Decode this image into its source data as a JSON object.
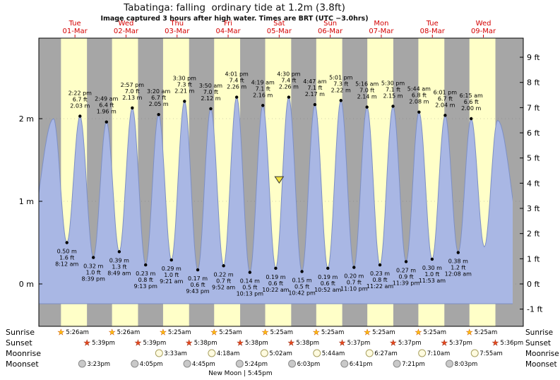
{
  "title": "Tabatinga: falling  ordinary tide at 1.2m (3.8ft)",
  "subtitle": "Image captured 3 hours after high water. Times are BRT (UTC −3.0hrs)",
  "chart_data": {
    "type": "area",
    "title": "Tabatinga: falling ordinary tide at 1.2m (3.8ft)",
    "subtitle": "Image captured 3 hours after high water. Times are BRT (UTC −3.0hrs)",
    "x_axis_days": [
      {
        "dow": "Tue",
        "date": "01-Mar"
      },
      {
        "dow": "Wed",
        "date": "02-Mar"
      },
      {
        "dow": "Thu",
        "date": "03-Mar"
      },
      {
        "dow": "Fri",
        "date": "04-Mar"
      },
      {
        "dow": "Sat",
        "date": "05-Mar"
      },
      {
        "dow": "Sun",
        "date": "06-Mar"
      },
      {
        "dow": "Mon",
        "date": "07-Mar"
      },
      {
        "dow": "Tue",
        "date": "08-Mar"
      },
      {
        "dow": "Wed",
        "date": "09-Mar"
      }
    ],
    "y_left_unit": "m",
    "y_left_ticks_m": [
      0,
      1,
      2
    ],
    "y_right_unit": "ft",
    "y_right_ticks_ft": [
      -1,
      0,
      1,
      2,
      3,
      4,
      5,
      6,
      7,
      8,
      9
    ],
    "tide_extremes": [
      {
        "day": 0,
        "type": "low",
        "time": "8:12 am",
        "m": 0.5,
        "ft": 1.6
      },
      {
        "day": 0,
        "type": "high",
        "time": "2:22 pm",
        "m": 2.03,
        "ft": 6.7
      },
      {
        "day": 0,
        "type": "low",
        "time": "8:39 pm",
        "m": 0.32,
        "ft": 1.0
      },
      {
        "day": 1,
        "type": "high",
        "time": "2:49 am",
        "m": 1.96,
        "ft": 6.4
      },
      {
        "day": 1,
        "type": "low",
        "time": "8:49 am",
        "m": 0.39,
        "ft": 1.3
      },
      {
        "day": 1,
        "type": "high",
        "time": "2:57 pm",
        "m": 2.13,
        "ft": 7.0
      },
      {
        "day": 1,
        "type": "low",
        "time": "9:13 pm",
        "m": 0.23,
        "ft": 0.8
      },
      {
        "day": 2,
        "type": "high",
        "time": "3:20 am",
        "m": 2.05,
        "ft": 6.7
      },
      {
        "day": 2,
        "type": "low",
        "time": "9:21 am",
        "m": 0.29,
        "ft": 1.0
      },
      {
        "day": 2,
        "type": "high",
        "time": "3:30 pm",
        "m": 2.21,
        "ft": 7.3
      },
      {
        "day": 2,
        "type": "low",
        "time": "9:43 pm",
        "m": 0.17,
        "ft": 0.6
      },
      {
        "day": 3,
        "type": "high",
        "time": "3:50 am",
        "m": 2.12,
        "ft": 7.0
      },
      {
        "day": 3,
        "type": "low",
        "time": "9:52 am",
        "m": 0.22,
        "ft": 0.7
      },
      {
        "day": 3,
        "type": "high",
        "time": "4:01 pm",
        "m": 2.26,
        "ft": 7.4
      },
      {
        "day": 3,
        "type": "low",
        "time": "10:13 pm",
        "m": 0.14,
        "ft": 0.5
      },
      {
        "day": 4,
        "type": "high",
        "time": "4:19 am",
        "m": 2.16,
        "ft": 7.1
      },
      {
        "day": 4,
        "type": "low",
        "time": "10:22 am",
        "m": 0.19,
        "ft": 0.6
      },
      {
        "day": 4,
        "type": "high",
        "time": "4:30 pm",
        "m": 2.26,
        "ft": 7.4
      },
      {
        "day": 4,
        "type": "low",
        "time": "10:42 pm",
        "m": 0.15,
        "ft": 0.5
      },
      {
        "day": 5,
        "type": "high",
        "time": "4:47 am",
        "m": 2.17,
        "ft": 7.1
      },
      {
        "day": 5,
        "type": "low",
        "time": "10:52 am",
        "m": 0.19,
        "ft": 0.6
      },
      {
        "day": 5,
        "type": "high",
        "time": "5:01 pm",
        "m": 2.22,
        "ft": 7.3
      },
      {
        "day": 5,
        "type": "low",
        "time": "11:10 pm",
        "m": 0.2,
        "ft": 0.7
      },
      {
        "day": 6,
        "type": "high",
        "time": "5:16 am",
        "m": 2.14,
        "ft": 7.0
      },
      {
        "day": 6,
        "type": "low",
        "time": "11:22 am",
        "m": 0.23,
        "ft": 0.8
      },
      {
        "day": 6,
        "type": "high",
        "time": "5:30 pm",
        "m": 2.15,
        "ft": 7.1
      },
      {
        "day": 6,
        "type": "low",
        "time": "11:39 pm",
        "m": 0.27,
        "ft": 0.9
      },
      {
        "day": 7,
        "type": "high",
        "time": "5:44 am",
        "m": 2.08,
        "ft": 6.8
      },
      {
        "day": 7,
        "type": "low",
        "time": "11:53 am",
        "m": 0.3,
        "ft": 1.0
      },
      {
        "day": 7,
        "type": "high",
        "time": "6:01 pm",
        "m": 2.04,
        "ft": 6.7
      },
      {
        "day": 8,
        "type": "low",
        "time": "12:08 am",
        "m": 0.38,
        "ft": 1.2
      },
      {
        "day": 8,
        "type": "high",
        "time": "6:15 am",
        "m": 2.0,
        "ft": 6.6
      }
    ],
    "current_level_marker": {
      "m": 1.23
    }
  },
  "astro": {
    "rows": [
      {
        "label": "Sunrise",
        "icon": "sunrise-sun-icon",
        "events": [
          {
            "day": 0,
            "time": "5:26am"
          },
          {
            "day": 1,
            "time": "5:26am"
          },
          {
            "day": 2,
            "time": "5:25am"
          },
          {
            "day": 3,
            "time": "5:25am"
          },
          {
            "day": 4,
            "time": "5:25am"
          },
          {
            "day": 5,
            "time": "5:25am"
          },
          {
            "day": 6,
            "time": "5:25am"
          },
          {
            "day": 7,
            "time": "5:25am"
          },
          {
            "day": 8,
            "time": "5:25am"
          }
        ]
      },
      {
        "label": "Sunset",
        "icon": "sunset-sun-icon",
        "events": [
          {
            "day": 0,
            "time": "5:39pm"
          },
          {
            "day": 1,
            "time": "5:39pm"
          },
          {
            "day": 2,
            "time": "5:38pm"
          },
          {
            "day": 3,
            "time": "5:38pm"
          },
          {
            "day": 4,
            "time": "5:38pm"
          },
          {
            "day": 5,
            "time": "5:37pm"
          },
          {
            "day": 6,
            "time": "5:37pm"
          },
          {
            "day": 7,
            "time": "5:37pm"
          },
          {
            "day": 8,
            "time": "5:36pm"
          }
        ]
      },
      {
        "label": "Moonrise",
        "icon": "moonrise-moon-icon",
        "events": [
          {
            "day": 2,
            "time": "3:33am"
          },
          {
            "day": 3,
            "time": "4:18am"
          },
          {
            "day": 4,
            "time": "5:02am"
          },
          {
            "day": 5,
            "time": "5:44am"
          },
          {
            "day": 6,
            "time": "6:27am"
          },
          {
            "day": 7,
            "time": "7:10am"
          },
          {
            "day": 8,
            "time": "7:55am"
          }
        ]
      },
      {
        "label": "Moonset",
        "icon": "moonset-moon-icon",
        "events": [
          {
            "day": 0,
            "time": "3:23pm"
          },
          {
            "day": 1,
            "time": "4:05pm"
          },
          {
            "day": 2,
            "time": "4:45pm"
          },
          {
            "day": 3,
            "time": "5:24pm"
          },
          {
            "day": 4,
            "time": "6:03pm"
          },
          {
            "day": 5,
            "time": "6:41pm"
          },
          {
            "day": 6,
            "time": "7:21pm"
          },
          {
            "day": 7,
            "time": "8:03pm"
          }
        ]
      }
    ],
    "new_moon_note": "New Moon | 5:45pm"
  },
  "colors": {
    "day_band": "#ffffc8",
    "night_band": "#a6a6a6",
    "tide_fill": "#a9b7e4",
    "tide_stroke": "#7d8fc4",
    "date_red": "#d40000",
    "marker_yellow": "#f2e23c",
    "sunrise_star": "#ffc20e",
    "sunset_star": "#e8491d",
    "moonrise_fill": "#fffbe0",
    "moonset_fill": "#c9c9c9"
  }
}
